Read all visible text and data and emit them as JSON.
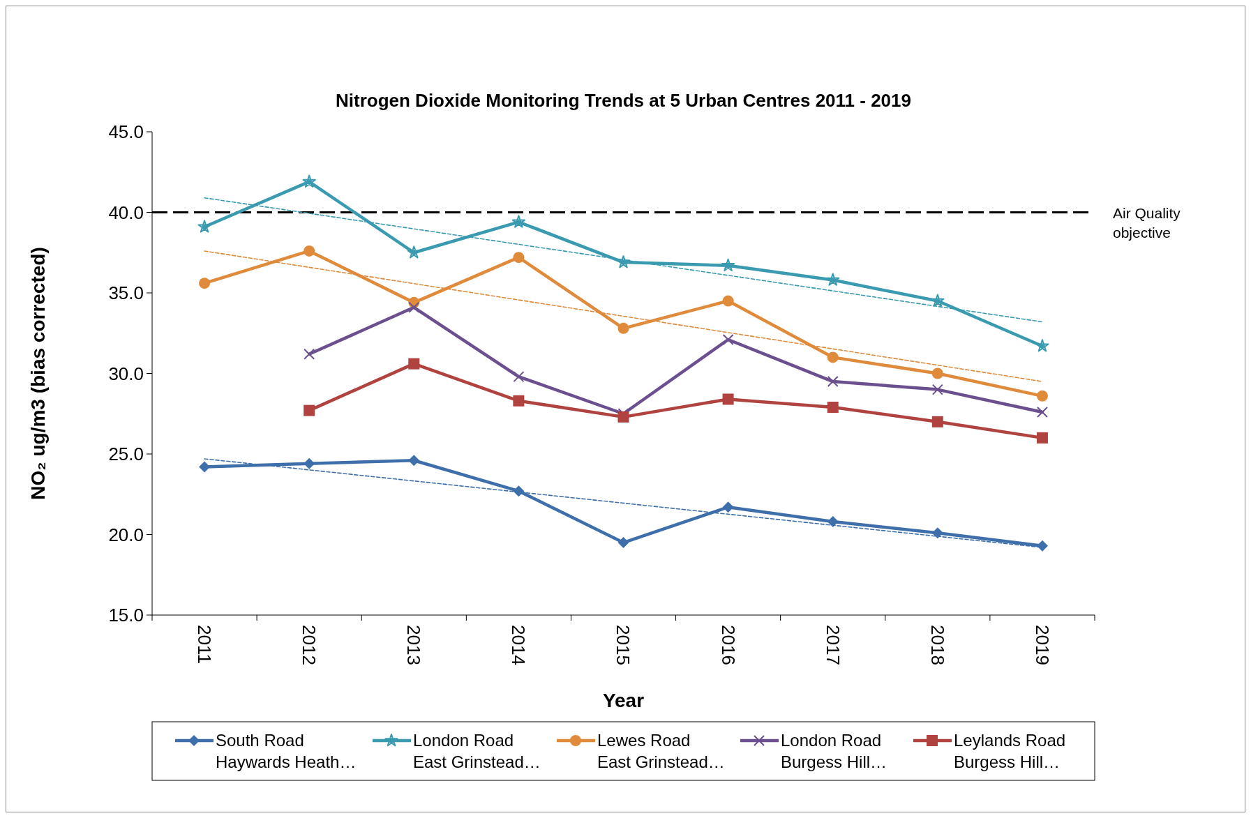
{
  "chart_data": {
    "type": "line",
    "title": "Nitrogen Dioxide Monitoring Trends at 5 Urban Centres 2011 - 2019",
    "xlabel": "Year",
    "ylabel": "NO₂ ug/m3 (bias corrected)",
    "categories": [
      "2011",
      "2012",
      "2013",
      "2014",
      "2015",
      "2016",
      "2017",
      "2018",
      "2019"
    ],
    "ylim": [
      15,
      45
    ],
    "yticks": [
      {
        "value": 15,
        "label": "15.0"
      },
      {
        "value": 20,
        "label": "20.0"
      },
      {
        "value": 25,
        "label": "25.0"
      },
      {
        "value": 30,
        "label": "30.0"
      },
      {
        "value": 35,
        "label": "35.0"
      },
      {
        "value": 40,
        "label": "40.0"
      },
      {
        "value": 45,
        "label": "45.0"
      }
    ],
    "grid": false,
    "legend": "bottom",
    "line_style": "solid",
    "series": [
      {
        "name": "South Road Haywards Heath…",
        "color": "#3f6faa",
        "marker": "diamond",
        "values": [
          24.2,
          24.4,
          24.6,
          22.7,
          19.5,
          21.7,
          20.8,
          20.1,
          19.3
        ]
      },
      {
        "name": "London Road East Grinstead…",
        "color": "#3a9ab0",
        "marker": "star",
        "values": [
          39.1,
          41.9,
          37.5,
          39.4,
          36.9,
          36.7,
          35.8,
          34.5,
          31.7
        ]
      },
      {
        "name": "Lewes Road East Grinstead…",
        "color": "#e08a3c",
        "marker": "circle",
        "values": [
          35.6,
          37.6,
          34.4,
          37.2,
          32.8,
          34.5,
          31.0,
          30.0,
          28.6
        ]
      },
      {
        "name": "London Road Burgess Hill…",
        "color": "#6b4f8f",
        "marker": "cross",
        "values": [
          null,
          31.2,
          34.1,
          29.8,
          27.5,
          32.1,
          29.5,
          29.0,
          27.6
        ]
      },
      {
        "name": "Leylands Road Burgess Hill…",
        "color": "#b0433f",
        "marker": "square",
        "values": [
          null,
          27.7,
          30.6,
          28.3,
          27.3,
          28.4,
          27.9,
          27.0,
          26.0
        ]
      },
      {
        "color": "#3f6faa",
        "marker": "none",
        "line_style": "dashed",
        "values": [
          24.7,
          null,
          null,
          null,
          null,
          null,
          null,
          null,
          19.2
        ]
      },
      {
        "color": "#3a9ab0",
        "marker": "none",
        "line_style": "dashed",
        "values": [
          40.9,
          null,
          null,
          null,
          null,
          null,
          null,
          null,
          33.2
        ]
      },
      {
        "color": "#e08a3c",
        "marker": "none",
        "line_style": "dashed",
        "values": [
          37.6,
          null,
          null,
          null,
          null,
          null,
          null,
          null,
          29.5
        ]
      }
    ],
    "ref_lines": [
      {
        "axis": "y",
        "value": 40,
        "label": "Air Quality objective",
        "color": "#000000",
        "line_style": "dashed"
      }
    ]
  }
}
